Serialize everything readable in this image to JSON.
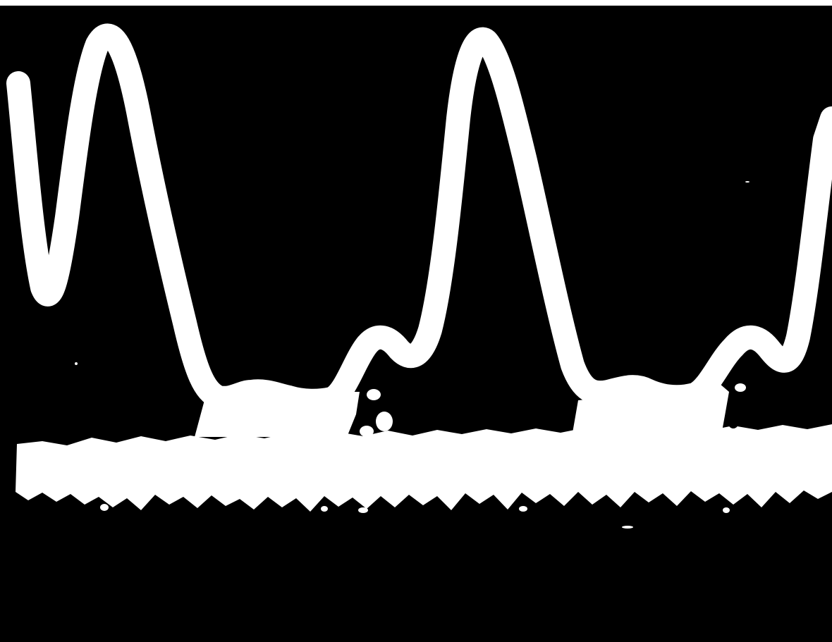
{
  "image": {
    "kind": "oscilloscope-photo",
    "background_color": "#000000",
    "trace_color": "#ffffff",
    "traces": [
      "periodic-pulse-waveform",
      "noisy-baseline-band"
    ]
  }
}
